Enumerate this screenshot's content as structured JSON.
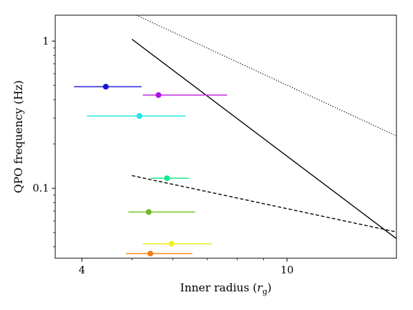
{
  "chart_data": {
    "type": "scatter",
    "title": "",
    "xlabel": "Inner radius (r_g)",
    "xlabel_main": "Inner radius (",
    "xlabel_var": "r",
    "xlabel_sub": "g",
    "xlabel_close": ")",
    "ylabel": "QPO frequency (Hz)",
    "xscale": "log",
    "yscale": "log",
    "xlim": [
      3.55,
      16.3
    ],
    "ylim": [
      0.0335,
      1.5
    ],
    "x_ticks": [
      {
        "value": 4,
        "label": "4"
      },
      {
        "value": 10,
        "label": "10"
      }
    ],
    "y_ticks": [
      {
        "value": 0.1,
        "label": "0.1"
      },
      {
        "value": 1,
        "label": "1"
      }
    ],
    "grid": false,
    "points": [
      {
        "x": 4.45,
        "y": 0.49,
        "xerr": [
          3.86,
          5.22
        ],
        "color": "#2f2ad8",
        "marker": "#1414d8"
      },
      {
        "x": 5.63,
        "y": 0.43,
        "xerr": [
          5.25,
          7.65
        ],
        "color": "#c42ee0",
        "marker": "#aa14e6"
      },
      {
        "x": 5.17,
        "y": 0.31,
        "xerr": [
          4.09,
          6.35
        ],
        "color": "#33e6e6",
        "marker": "#1ee6ea"
      },
      {
        "x": 5.85,
        "y": 0.117,
        "xerr": [
          5.45,
          6.45
        ],
        "color": "#27e98a",
        "marker": "#12e890"
      },
      {
        "x": 5.39,
        "y": 0.069,
        "xerr": [
          4.92,
          6.63
        ],
        "color": "#7cc832",
        "marker": "#74b624"
      },
      {
        "x": 5.97,
        "y": 0.042,
        "xerr": [
          5.25,
          7.15
        ],
        "color": "#ecec28",
        "marker": "#f2f21e"
      },
      {
        "x": 5.43,
        "y": 0.036,
        "xerr": [
          4.87,
          6.55
        ],
        "color": "#f3901e",
        "marker": "#f37c14"
      }
    ],
    "lines": [
      {
        "style": "solid",
        "x": [
          5.0,
          16.3
        ],
        "y": [
          1.03,
          0.0455
        ]
      },
      {
        "style": "dashed",
        "x": [
          5.0,
          16.3
        ],
        "y": [
          0.122,
          0.0505
        ]
      },
      {
        "style": "dotted",
        "x": [
          5.1,
          16.3
        ],
        "y": [
          1.5,
          0.227
        ]
      }
    ]
  }
}
